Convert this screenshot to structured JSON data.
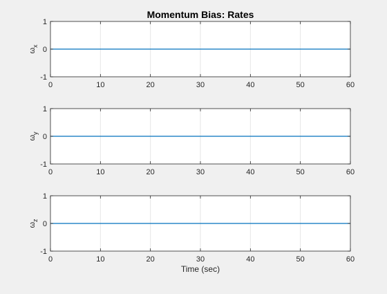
{
  "chart_data": {
    "type": "line",
    "title": "Momentum Bias: Rates",
    "xlabel": "Time (sec)",
    "xlim": [
      0,
      60
    ],
    "x_ticks": [
      0,
      10,
      20,
      30,
      40,
      50,
      60
    ],
    "grid": "vertical",
    "colors": {
      "figure_background": "#f0f0f0",
      "axes_background": "#ffffff",
      "axes_edge": "#262626",
      "grid": "#e6e6e6",
      "line": "#0072bd"
    },
    "subplots": [
      {
        "ylabel_symbol": "ω",
        "ylabel_subscript": "x",
        "ylim": [
          -1,
          1
        ],
        "y_ticks": [
          -1,
          0,
          1
        ],
        "series": [
          {
            "x": [
              0,
              60
            ],
            "y": [
              0,
              0
            ]
          }
        ]
      },
      {
        "ylabel_symbol": "ω",
        "ylabel_subscript": "y",
        "ylim": [
          -1,
          1
        ],
        "y_ticks": [
          -1,
          0,
          1
        ],
        "series": [
          {
            "x": [
              0,
              60
            ],
            "y": [
              0,
              0
            ]
          }
        ]
      },
      {
        "ylabel_symbol": "ω",
        "ylabel_subscript": "z",
        "ylim": [
          -1,
          1
        ],
        "y_ticks": [
          -1,
          0,
          1
        ],
        "series": [
          {
            "x": [
              0,
              60
            ],
            "y": [
              0,
              0
            ]
          }
        ]
      }
    ]
  }
}
